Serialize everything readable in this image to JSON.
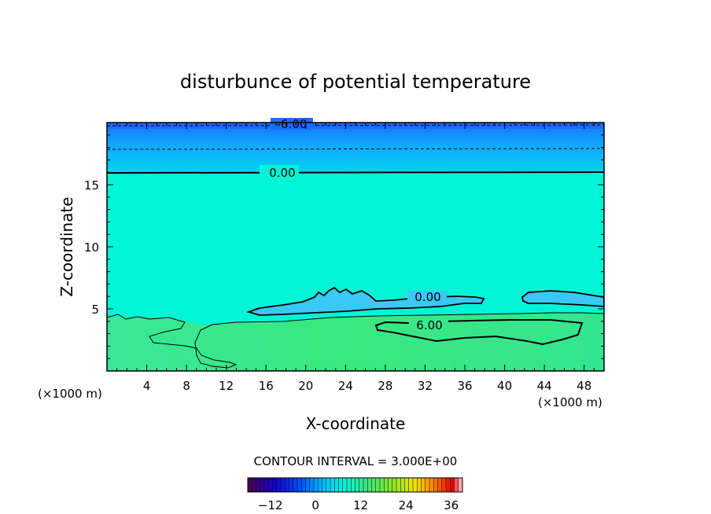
{
  "chart_data": {
    "type": "heatmap",
    "title": "disturbunce of potential temperature",
    "xlabel": "X-coordinate",
    "ylabel": "Z-coordinate",
    "x_unit_left": "(×1000 m)",
    "x_unit_right": "(×1000 m)",
    "xlim": [
      0,
      50
    ],
    "ylim": [
      0,
      20
    ],
    "x_ticks": [
      "4",
      "8",
      "12",
      "16",
      "20",
      "24",
      "28",
      "32",
      "36",
      "40",
      "44",
      "48"
    ],
    "y_ticks": [
      "5",
      "10",
      "15"
    ],
    "contour_labels": [
      "-6.00",
      "0.00",
      "0.00",
      "6.00"
    ],
    "contour_interval_text": "CONTOUR INTERVAL = 3.000E+00",
    "colorbar": {
      "min": -18,
      "max": 39,
      "ticks": [
        "-12",
        "0",
        "12",
        "24",
        "36"
      ]
    },
    "colors": {
      "background_field": "#00f5d6",
      "upper_blue": "#1e90ff",
      "lower_green": "#3ae58a"
    }
  }
}
